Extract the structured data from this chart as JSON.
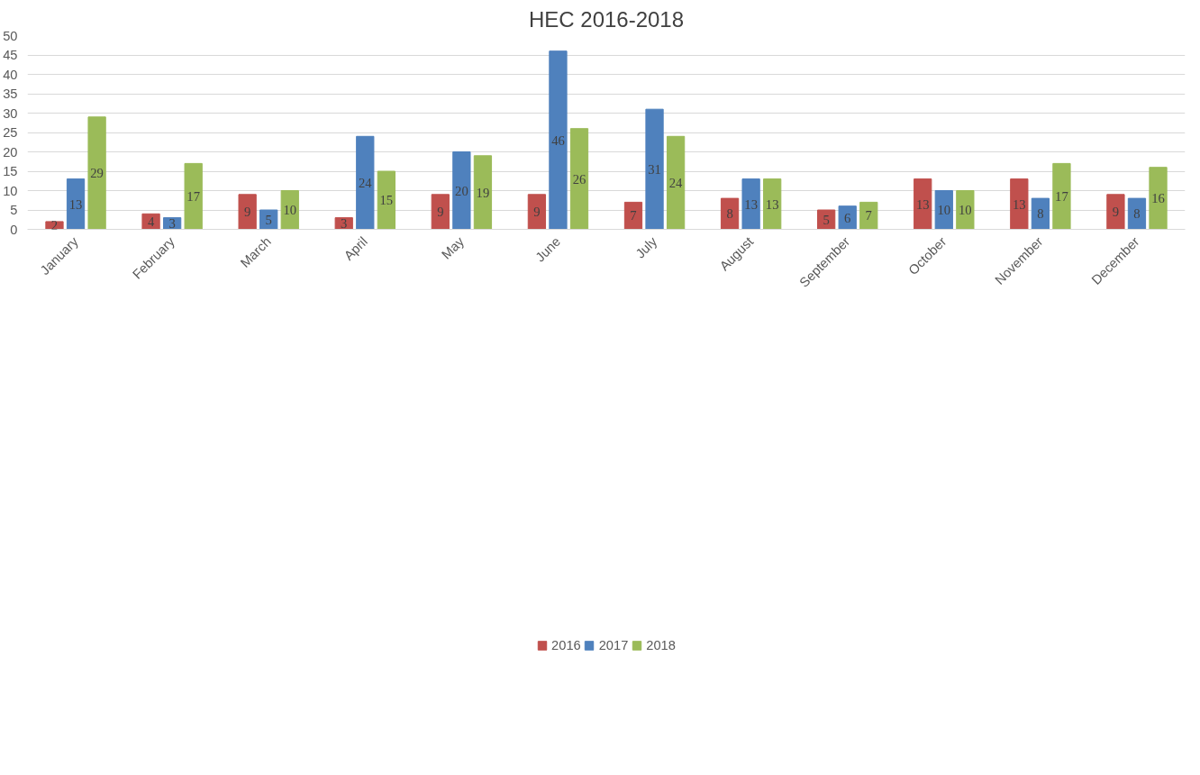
{
  "chart_data": {
    "type": "bar",
    "title": "HEC 2016-2018",
    "categories": [
      "January",
      "February",
      "March",
      "April",
      "May",
      "June",
      "July",
      "August",
      "September",
      "October",
      "November",
      "December"
    ],
    "series": [
      {
        "name": "2016",
        "color": "#c0504d",
        "values": [
          2,
          4,
          9,
          3,
          9,
          9,
          7,
          8,
          5,
          13,
          13,
          9
        ]
      },
      {
        "name": "2017",
        "color": "#4f81bd",
        "values": [
          13,
          3,
          5,
          24,
          20,
          46,
          31,
          13,
          6,
          10,
          8,
          8
        ]
      },
      {
        "name": "2018",
        "color": "#9bbb59",
        "values": [
          29,
          17,
          10,
          15,
          19,
          26,
          24,
          13,
          7,
          10,
          17,
          16
        ]
      }
    ],
    "ylim": [
      0,
      50
    ],
    "yticks": [
      0,
      5,
      10,
      15,
      20,
      25,
      30,
      35,
      40,
      45,
      50
    ],
    "grid": "y",
    "legend": "bottom",
    "data_labels": true
  }
}
